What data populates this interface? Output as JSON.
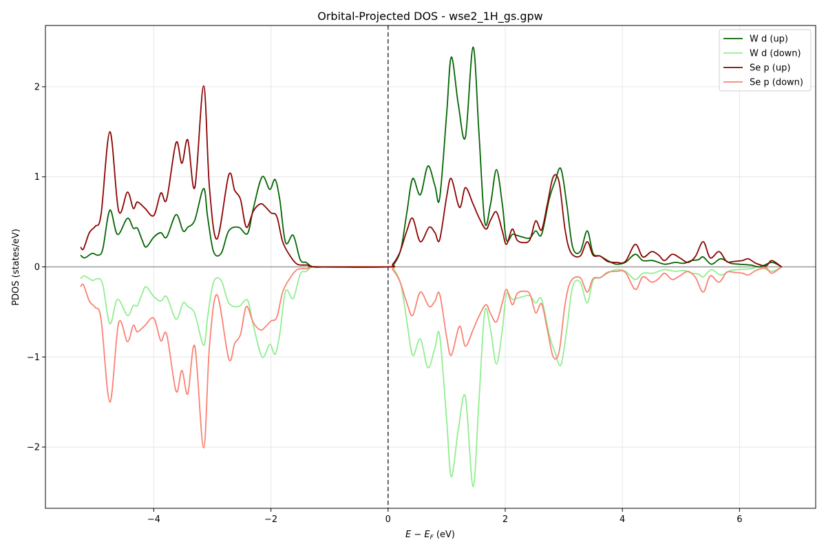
{
  "chart_data": {
    "type": "line",
    "title": "Orbital-Projected DOS - wse2_1H_gs.gpw",
    "xlabel": "E − E",
    "xlabel_sub": "F",
    "xlabel_unit": " (eV)",
    "ylabel": "PDOS (states/eV)",
    "xlim": [
      -5.85,
      7.3
    ],
    "ylim": [
      -2.68,
      2.68
    ],
    "xticks": [
      -4,
      -2,
      0,
      2,
      4,
      6
    ],
    "xtick_labels": [
      "−4",
      "−2",
      "0",
      "2",
      "4",
      "6"
    ],
    "yticks": [
      -2,
      -1,
      0,
      1,
      2
    ],
    "ytick_labels": [
      "−2",
      "−1",
      "0",
      "1",
      "2"
    ],
    "grid": true,
    "fermi_line_x": 0,
    "zero_line_y": 0,
    "legend_position": "top-right",
    "series": [
      {
        "name": "W d (up)",
        "color": "#006400",
        "points": [
          [
            -5.25,
            0.13
          ],
          [
            -5.18,
            0.1
          ],
          [
            -5.05,
            0.15
          ],
          [
            -4.95,
            0.13
          ],
          [
            -4.87,
            0.2
          ],
          [
            -4.75,
            0.63
          ],
          [
            -4.62,
            0.36
          ],
          [
            -4.45,
            0.54
          ],
          [
            -4.35,
            0.43
          ],
          [
            -4.28,
            0.43
          ],
          [
            -4.2,
            0.3
          ],
          [
            -4.13,
            0.22
          ],
          [
            -4.0,
            0.33
          ],
          [
            -3.88,
            0.38
          ],
          [
            -3.78,
            0.33
          ],
          [
            -3.62,
            0.58
          ],
          [
            -3.5,
            0.4
          ],
          [
            -3.42,
            0.44
          ],
          [
            -3.3,
            0.52
          ],
          [
            -3.15,
            0.87
          ],
          [
            -3.08,
            0.55
          ],
          [
            -2.98,
            0.17
          ],
          [
            -2.85,
            0.15
          ],
          [
            -2.72,
            0.4
          ],
          [
            -2.55,
            0.44
          ],
          [
            -2.4,
            0.37
          ],
          [
            -2.3,
            0.65
          ],
          [
            -2.15,
            1.0
          ],
          [
            -2.02,
            0.86
          ],
          [
            -1.93,
            0.97
          ],
          [
            -1.85,
            0.75
          ],
          [
            -1.75,
            0.27
          ],
          [
            -1.62,
            0.35
          ],
          [
            -1.5,
            0.08
          ],
          [
            -1.4,
            0.05
          ],
          [
            -1.28,
            0.0
          ],
          [
            -1.0,
            0.0
          ],
          [
            0.0,
            0.0
          ],
          [
            0.1,
            0.03
          ],
          [
            0.22,
            0.2
          ],
          [
            0.32,
            0.6
          ],
          [
            0.42,
            0.98
          ],
          [
            0.55,
            0.8
          ],
          [
            0.68,
            1.12
          ],
          [
            0.8,
            0.9
          ],
          [
            0.88,
            0.76
          ],
          [
            1.0,
            1.7
          ],
          [
            1.08,
            2.33
          ],
          [
            1.2,
            1.8
          ],
          [
            1.32,
            1.44
          ],
          [
            1.45,
            2.44
          ],
          [
            1.55,
            1.5
          ],
          [
            1.65,
            0.5
          ],
          [
            1.75,
            0.7
          ],
          [
            1.85,
            1.08
          ],
          [
            1.95,
            0.7
          ],
          [
            2.02,
            0.3
          ],
          [
            2.12,
            0.36
          ],
          [
            2.2,
            0.35
          ],
          [
            2.3,
            0.33
          ],
          [
            2.42,
            0.32
          ],
          [
            2.52,
            0.4
          ],
          [
            2.62,
            0.36
          ],
          [
            2.75,
            0.75
          ],
          [
            2.85,
            0.95
          ],
          [
            2.95,
            1.09
          ],
          [
            3.05,
            0.7
          ],
          [
            3.15,
            0.22
          ],
          [
            3.28,
            0.17
          ],
          [
            3.4,
            0.4
          ],
          [
            3.5,
            0.15
          ],
          [
            3.62,
            0.12
          ],
          [
            3.78,
            0.06
          ],
          [
            3.9,
            0.03
          ],
          [
            4.05,
            0.05
          ],
          [
            4.22,
            0.14
          ],
          [
            4.35,
            0.07
          ],
          [
            4.52,
            0.07
          ],
          [
            4.72,
            0.03
          ],
          [
            4.9,
            0.05
          ],
          [
            5.05,
            0.04
          ],
          [
            5.18,
            0.07
          ],
          [
            5.3,
            0.08
          ],
          [
            5.38,
            0.11
          ],
          [
            5.52,
            0.03
          ],
          [
            5.68,
            0.09
          ],
          [
            5.85,
            0.04
          ],
          [
            6.0,
            0.03
          ],
          [
            6.2,
            0.02
          ],
          [
            6.35,
            0.0
          ],
          [
            6.55,
            0.05
          ],
          [
            6.72,
            0.0
          ]
        ]
      },
      {
        "name": "W d (down)",
        "color": "#90ee90",
        "mirror_of": 0
      },
      {
        "name": "Se p (up)",
        "color": "#8b0000",
        "points": [
          [
            -5.25,
            0.22
          ],
          [
            -5.2,
            0.2
          ],
          [
            -5.1,
            0.38
          ],
          [
            -5.0,
            0.45
          ],
          [
            -4.9,
            0.58
          ],
          [
            -4.75,
            1.5
          ],
          [
            -4.6,
            0.62
          ],
          [
            -4.45,
            0.83
          ],
          [
            -4.35,
            0.65
          ],
          [
            -4.28,
            0.72
          ],
          [
            -4.15,
            0.65
          ],
          [
            -4.0,
            0.57
          ],
          [
            -3.88,
            0.82
          ],
          [
            -3.78,
            0.75
          ],
          [
            -3.62,
            1.38
          ],
          [
            -3.52,
            1.15
          ],
          [
            -3.42,
            1.41
          ],
          [
            -3.3,
            0.88
          ],
          [
            -3.15,
            2.01
          ],
          [
            -3.05,
            0.88
          ],
          [
            -2.92,
            0.31
          ],
          [
            -2.72,
            1.02
          ],
          [
            -2.62,
            0.85
          ],
          [
            -2.52,
            0.75
          ],
          [
            -2.42,
            0.44
          ],
          [
            -2.3,
            0.62
          ],
          [
            -2.18,
            0.7
          ],
          [
            -2.1,
            0.67
          ],
          [
            -2.0,
            0.6
          ],
          [
            -1.9,
            0.56
          ],
          [
            -1.8,
            0.28
          ],
          [
            -1.68,
            0.13
          ],
          [
            -1.55,
            0.03
          ],
          [
            -1.38,
            0.02
          ],
          [
            -1.2,
            0.0
          ],
          [
            0.0,
            0.0
          ],
          [
            0.08,
            0.03
          ],
          [
            0.2,
            0.16
          ],
          [
            0.32,
            0.4
          ],
          [
            0.42,
            0.54
          ],
          [
            0.55,
            0.28
          ],
          [
            0.7,
            0.44
          ],
          [
            0.8,
            0.38
          ],
          [
            0.88,
            0.3
          ],
          [
            1.0,
            0.78
          ],
          [
            1.08,
            0.98
          ],
          [
            1.22,
            0.66
          ],
          [
            1.32,
            0.88
          ],
          [
            1.45,
            0.7
          ],
          [
            1.55,
            0.55
          ],
          [
            1.67,
            0.42
          ],
          [
            1.75,
            0.52
          ],
          [
            1.85,
            0.61
          ],
          [
            1.95,
            0.4
          ],
          [
            2.02,
            0.25
          ],
          [
            2.12,
            0.42
          ],
          [
            2.2,
            0.3
          ],
          [
            2.3,
            0.27
          ],
          [
            2.42,
            0.3
          ],
          [
            2.52,
            0.51
          ],
          [
            2.62,
            0.41
          ],
          [
            2.72,
            0.7
          ],
          [
            2.82,
            1.0
          ],
          [
            2.92,
            0.94
          ],
          [
            3.02,
            0.42
          ],
          [
            3.12,
            0.16
          ],
          [
            3.28,
            0.12
          ],
          [
            3.4,
            0.28
          ],
          [
            3.5,
            0.13
          ],
          [
            3.62,
            0.12
          ],
          [
            3.75,
            0.06
          ],
          [
            3.9,
            0.05
          ],
          [
            4.05,
            0.06
          ],
          [
            4.22,
            0.25
          ],
          [
            4.35,
            0.11
          ],
          [
            4.5,
            0.17
          ],
          [
            4.62,
            0.13
          ],
          [
            4.72,
            0.07
          ],
          [
            4.85,
            0.14
          ],
          [
            4.98,
            0.1
          ],
          [
            5.12,
            0.05
          ],
          [
            5.25,
            0.12
          ],
          [
            5.38,
            0.28
          ],
          [
            5.5,
            0.1
          ],
          [
            5.65,
            0.17
          ],
          [
            5.78,
            0.06
          ],
          [
            5.9,
            0.06
          ],
          [
            6.05,
            0.07
          ],
          [
            6.15,
            0.09
          ],
          [
            6.28,
            0.04
          ],
          [
            6.45,
            0.01
          ],
          [
            6.55,
            0.07
          ],
          [
            6.72,
            0.0
          ]
        ]
      },
      {
        "name": "Se p (down)",
        "color": "#fa8072",
        "mirror_of": 2
      }
    ]
  }
}
